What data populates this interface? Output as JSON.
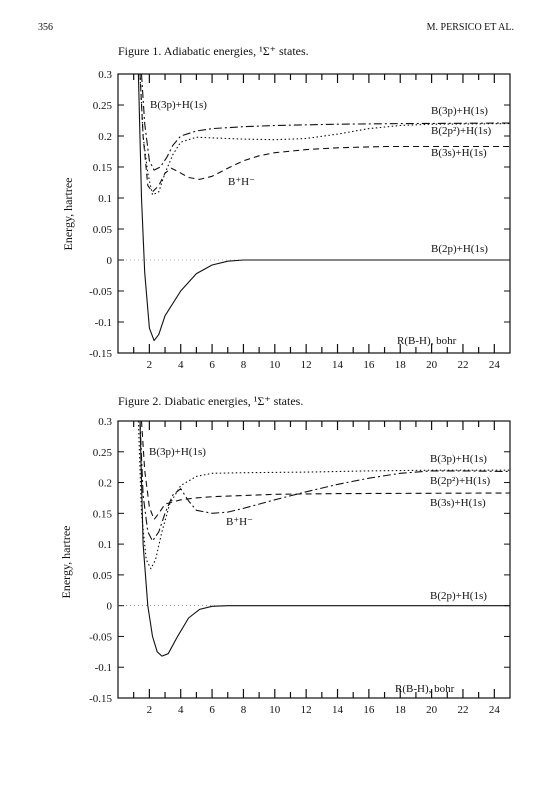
{
  "header": {
    "page_number": "356",
    "running_head": "M. PERSICO ET AL."
  },
  "figures": [
    {
      "caption_prefix": "Figure 1.",
      "caption_text": "Adiabatic energies, ¹Σ⁺ states.",
      "ylabel": "Energy, hartree",
      "xlabel": "R(B-H), bohr"
    },
    {
      "caption_prefix": "Figure 2.",
      "caption_text": "Diabatic energies, ¹Σ⁺ states.",
      "ylabel": "Energy, hartree",
      "xlabel": "R(B-H), bohr"
    }
  ],
  "chart_data": [
    {
      "type": "line",
      "title": "Figure 1. Adiabatic energies, ¹Σ⁺ states.",
      "xlabel": "R(B-H), bohr",
      "ylabel": "Energy, hartree",
      "xlim": [
        0,
        25
      ],
      "ylim": [
        -0.15,
        0.3
      ],
      "x_ticks": [
        2,
        4,
        6,
        8,
        10,
        12,
        14,
        16,
        18,
        20,
        22,
        24
      ],
      "y_ticks": [
        "-0.15",
        "-0.1",
        "-0.05",
        "0",
        "0.05",
        "0.1",
        "0.15",
        "0.2",
        "0.25",
        "0.3"
      ],
      "grid": false,
      "series": [
        {
          "name": "B(2p)+H(1s)",
          "style": "solid",
          "points": [
            [
              1.3,
              0.3
            ],
            [
              1.5,
              0.1
            ],
            [
              1.7,
              -0.02
            ],
            [
              2.0,
              -0.11
            ],
            [
              2.3,
              -0.13
            ],
            [
              2.6,
              -0.12
            ],
            [
              3.0,
              -0.09
            ],
            [
              4.0,
              -0.05
            ],
            [
              5.0,
              -0.022
            ],
            [
              6.0,
              -0.008
            ],
            [
              7.0,
              -0.002
            ],
            [
              8.0,
              0.0
            ],
            [
              25.0,
              0.0
            ]
          ]
        },
        {
          "name": "B(3s)+H(1s)",
          "style": "dashed",
          "points": [
            [
              1.4,
              0.3
            ],
            [
              1.6,
              0.2
            ],
            [
              1.9,
              0.12
            ],
            [
              2.2,
              0.11
            ],
            [
              2.6,
              0.12
            ],
            [
              3.0,
              0.14
            ],
            [
              3.4,
              0.148
            ],
            [
              3.8,
              0.143
            ],
            [
              4.5,
              0.133
            ],
            [
              5.2,
              0.13
            ],
            [
              6.0,
              0.135
            ],
            [
              7.0,
              0.148
            ],
            [
              8.0,
              0.16
            ],
            [
              9.0,
              0.168
            ],
            [
              10.0,
              0.173
            ],
            [
              12.0,
              0.178
            ],
            [
              14.0,
              0.181
            ],
            [
              17.0,
              0.183
            ],
            [
              25.0,
              0.183
            ]
          ]
        },
        {
          "name": "B(2p²)+H(1s)",
          "style": "dotted",
          "points": [
            [
              1.4,
              0.3
            ],
            [
              1.6,
              0.2
            ],
            [
              1.9,
              0.14
            ],
            [
              2.2,
              0.105
            ],
            [
              2.6,
              0.11
            ],
            [
              3.0,
              0.14
            ],
            [
              3.5,
              0.17
            ],
            [
              4.0,
              0.19
            ],
            [
              5.0,
              0.198
            ],
            [
              6.0,
              0.197
            ],
            [
              8.0,
              0.195
            ],
            [
              10.0,
              0.194
            ],
            [
              12.0,
              0.196
            ],
            [
              14.0,
              0.203
            ],
            [
              16.0,
              0.212
            ],
            [
              18.0,
              0.217
            ],
            [
              20.0,
              0.219
            ],
            [
              25.0,
              0.22
            ]
          ]
        },
        {
          "name": "B(3p)+H(1s)",
          "style": "dash-dot",
          "points": [
            [
              1.5,
              0.3
            ],
            [
              1.7,
              0.22
            ],
            [
              2.0,
              0.16
            ],
            [
              2.3,
              0.145
            ],
            [
              2.7,
              0.15
            ],
            [
              3.1,
              0.165
            ],
            [
              3.5,
              0.185
            ],
            [
              4.0,
              0.2
            ],
            [
              5.0,
              0.208
            ],
            [
              6.0,
              0.212
            ],
            [
              8.0,
              0.215
            ],
            [
              10.0,
              0.217
            ],
            [
              14.0,
              0.219
            ],
            [
              18.0,
              0.22
            ],
            [
              25.0,
              0.221
            ]
          ]
        }
      ],
      "annotations": [
        "B(3p)+H(1s)",
        "B(3p)+H(1s)",
        "B(2p²)+H(1s)",
        "B(3s)+H(1s)",
        "B⁺H⁻",
        "B(2p)+H(1s)"
      ]
    },
    {
      "type": "line",
      "title": "Figure 2. Diabatic energies, ¹Σ⁺ states.",
      "xlabel": "R(B-H), bohr",
      "ylabel": "Energy, hartree",
      "xlim": [
        0,
        25
      ],
      "ylim": [
        -0.15,
        0.3
      ],
      "x_ticks": [
        2,
        4,
        6,
        8,
        10,
        12,
        14,
        16,
        18,
        20,
        22,
        24
      ],
      "y_ticks": [
        "-0.15",
        "-0.1",
        "-0.05",
        "0",
        "0.05",
        "0.1",
        "0.15",
        "0.2",
        "0.25",
        "0.3"
      ],
      "grid": false,
      "series": [
        {
          "name": "B(2p)+H(1s)",
          "style": "solid",
          "points": [
            [
              1.4,
              0.3
            ],
            [
              1.6,
              0.1
            ],
            [
              1.9,
              0.0
            ],
            [
              2.2,
              -0.05
            ],
            [
              2.5,
              -0.075
            ],
            [
              2.8,
              -0.082
            ],
            [
              3.2,
              -0.078
            ],
            [
              3.8,
              -0.05
            ],
            [
              4.5,
              -0.02
            ],
            [
              5.2,
              -0.006
            ],
            [
              6.0,
              -0.001
            ],
            [
              7.0,
              0.0
            ],
            [
              25.0,
              0.0
            ]
          ]
        },
        {
          "name": "B(3s)+H(1s)",
          "style": "dashed",
          "points": [
            [
              1.5,
              0.3
            ],
            [
              1.7,
              0.22
            ],
            [
              2.0,
              0.16
            ],
            [
              2.3,
              0.14
            ],
            [
              2.6,
              0.15
            ],
            [
              3.0,
              0.165
            ],
            [
              4.0,
              0.172
            ],
            [
              5.0,
              0.175
            ],
            [
              6.0,
              0.177
            ],
            [
              8.0,
              0.179
            ],
            [
              10.0,
              0.181
            ],
            [
              14.0,
              0.182
            ],
            [
              25.0,
              0.183
            ]
          ]
        },
        {
          "name": "B(2p²)+H(1s)",
          "style": "dotted",
          "points": [
            [
              1.3,
              0.3
            ],
            [
              1.5,
              0.15
            ],
            [
              1.8,
              0.075
            ],
            [
              2.1,
              0.06
            ],
            [
              2.4,
              0.075
            ],
            [
              2.8,
              0.12
            ],
            [
              3.3,
              0.165
            ],
            [
              4.0,
              0.195
            ],
            [
              5.0,
              0.21
            ],
            [
              6.0,
              0.215
            ],
            [
              8.0,
              0.216
            ],
            [
              12.0,
              0.217
            ],
            [
              16.0,
              0.219
            ],
            [
              20.0,
              0.22
            ],
            [
              25.0,
              0.22
            ]
          ]
        },
        {
          "name": "B(3p)+H(1s)",
          "style": "dash-dot",
          "points": [
            [
              1.4,
              0.3
            ],
            [
              1.6,
              0.18
            ],
            [
              1.9,
              0.12
            ],
            [
              2.2,
              0.105
            ],
            [
              2.6,
              0.12
            ],
            [
              3.0,
              0.15
            ],
            [
              3.5,
              0.18
            ],
            [
              4.0,
              0.19
            ],
            [
              4.5,
              0.17
            ],
            [
              5.0,
              0.155
            ],
            [
              6.0,
              0.15
            ],
            [
              7.0,
              0.152
            ],
            [
              8.0,
              0.158
            ],
            [
              10.0,
              0.172
            ],
            [
              12.0,
              0.185
            ],
            [
              14.0,
              0.197
            ],
            [
              16.0,
              0.207
            ],
            [
              18.0,
              0.215
            ],
            [
              20.0,
              0.219
            ],
            [
              22.0,
              0.219
            ],
            [
              25.0,
              0.218
            ]
          ]
        }
      ],
      "annotations": [
        "B(3p)+H(1s)",
        "B(3p)+H(1s)",
        "B(2p²)+H(1s)",
        "B(3s)+H(1s)",
        "B⁺H⁻",
        "B(2p)+H(1s)"
      ]
    }
  ],
  "labels": {
    "fig1": {
      "b3p_left": "B(3p)+H(1s)",
      "b3p_right": "B(3p)+H(1s)",
      "b2p2_right": "B(2p²)+H(1s)",
      "b3s_right": "B(3s)+H(1s)",
      "bh_ion": "B⁺H⁻",
      "b2p_right": "B(2p)+H(1s)"
    },
    "fig2": {
      "b3p_left": "B(3p)+H(1s)",
      "b3p_right": "B(3p)+H(1s)",
      "b2p2_right": "B(2p²)+H(1s)",
      "b3s_right": "B(3s)+H(1s)",
      "bh_ion": "B⁺H⁻",
      "b2p_right": "B(2p)+H(1s)"
    }
  }
}
